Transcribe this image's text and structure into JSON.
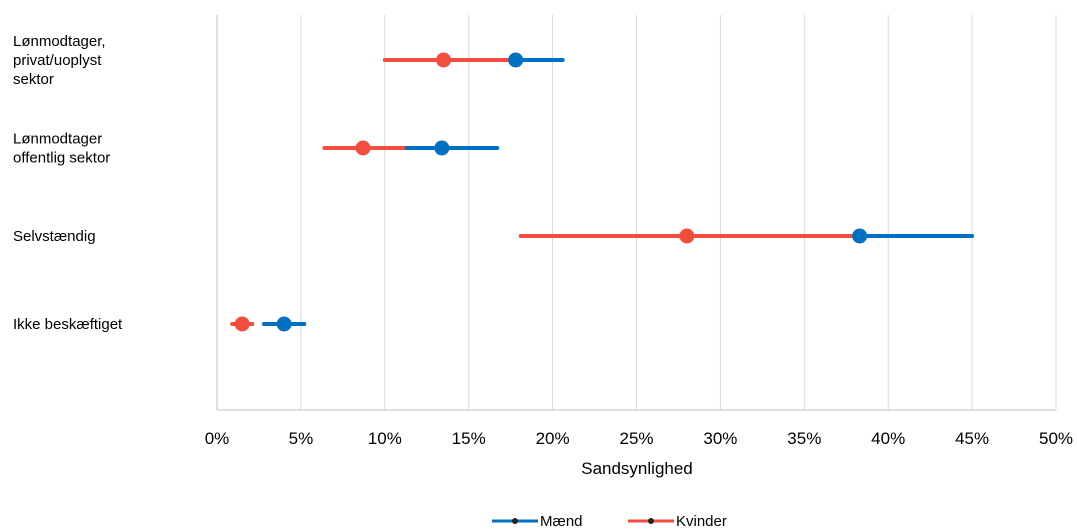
{
  "chart_data": {
    "type": "scatter",
    "subtype": "dot-with-error-bars",
    "orientation": "horizontal",
    "title": "",
    "xlabel": "Sandsynlighed",
    "ylabel": "",
    "xlim": [
      0,
      50
    ],
    "x_ticks": [
      0,
      5,
      10,
      15,
      20,
      25,
      30,
      35,
      40,
      45,
      50
    ],
    "x_tick_labels": [
      "0%",
      "5%",
      "10%",
      "15%",
      "20%",
      "25%",
      "30%",
      "35%",
      "40%",
      "45%",
      "50%"
    ],
    "x_unit": "percent",
    "grid": {
      "vertical": true,
      "horizontal": false
    },
    "categories": [
      [
        "Lønmodtager,",
        "privat/uoplyst",
        "sektor"
      ],
      [
        "Lønmodtager",
        "offentlig sektor"
      ],
      [
        "Selvstændig"
      ],
      [
        "Ikke beskæftiget"
      ]
    ],
    "series": [
      {
        "name": "Mænd",
        "color": "#0070C0",
        "points": [
          {
            "value": 17.8,
            "low": 15.0,
            "high": 20.6
          },
          {
            "value": 13.4,
            "low": 11.0,
            "high": 16.7
          },
          {
            "value": 38.3,
            "low": 31.7,
            "high": 45.0
          },
          {
            "value": 4.0,
            "low": 2.8,
            "high": 5.2
          }
        ]
      },
      {
        "name": "Kvinder",
        "color": "#F24E3E",
        "points": [
          {
            "value": 13.5,
            "low": 10.0,
            "high": 17.5
          },
          {
            "value": 8.7,
            "low": 6.4,
            "high": 11.1
          },
          {
            "value": 28.0,
            "low": 18.1,
            "high": 38.0
          },
          {
            "value": 1.5,
            "low": 0.9,
            "high": 2.1
          }
        ]
      }
    ],
    "legend": {
      "position": "bottom",
      "entries": [
        "Mænd",
        "Kvinder"
      ]
    }
  }
}
